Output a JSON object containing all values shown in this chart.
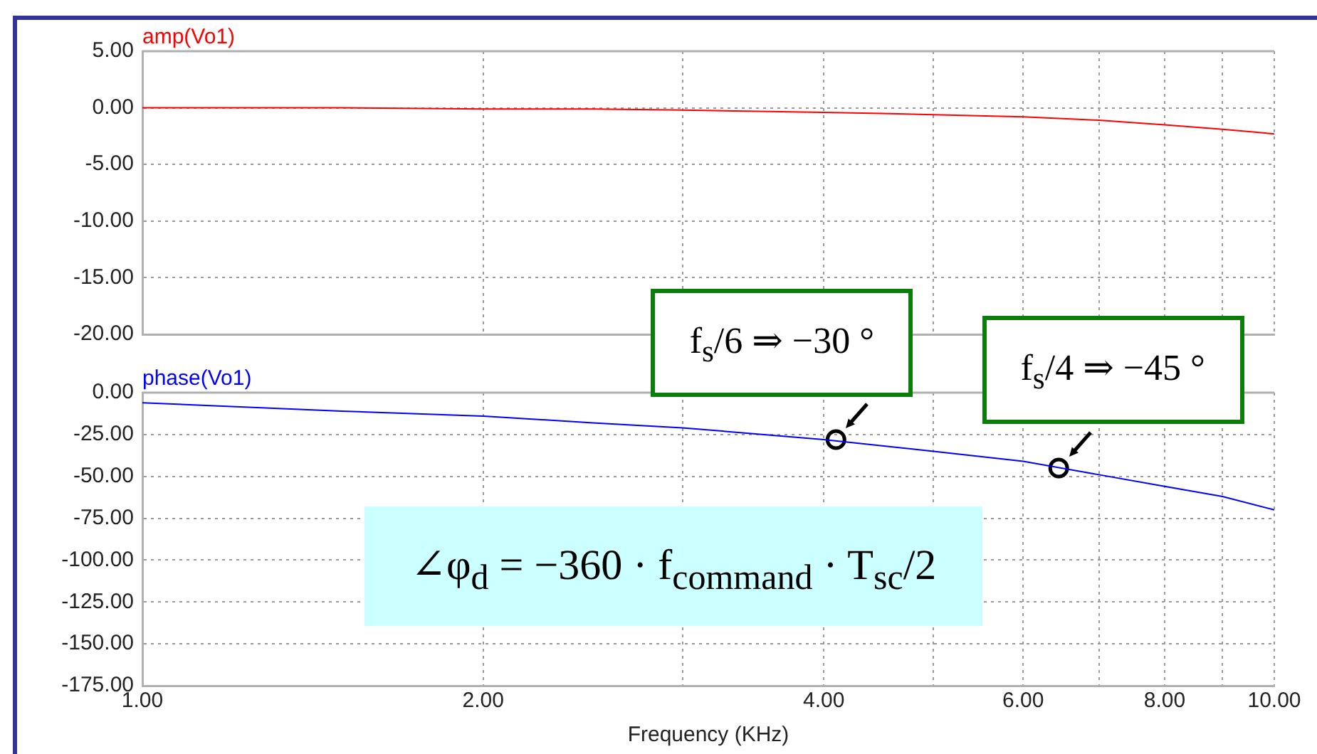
{
  "chart_data": [
    {
      "type": "line",
      "series": [
        {
          "name": "amp(Vo1)",
          "color": "#ff0000",
          "x": [
            1,
            1.5,
            2,
            2.5,
            3,
            3.5,
            4,
            4.5,
            5,
            6,
            7,
            8,
            9,
            10
          ],
          "values": [
            0,
            0,
            -0.1,
            -0.1,
            -0.2,
            -0.3,
            -0.4,
            -0.5,
            -0.6,
            -0.8,
            -1.1,
            -1.5,
            -1.9,
            -2.3
          ]
        }
      ],
      "log": "x",
      "xlim": [
        1,
        10
      ],
      "xticks": [
        1,
        2,
        3,
        4,
        5,
        6,
        7,
        8,
        9,
        10
      ],
      "ylim": [
        -20,
        5
      ],
      "yticks": [
        {
          "value": -20,
          "label": "-20.00"
        },
        {
          "value": -15,
          "label": "-15.00"
        },
        {
          "value": -10,
          "label": "-10.00"
        },
        {
          "value": -5,
          "label": "-5.00"
        },
        {
          "value": 0,
          "label": "0.00"
        },
        {
          "value": 5,
          "label": "5.00"
        }
      ],
      "tick_labels": "y",
      "grid": true
    },
    {
      "type": "line",
      "xlabel": "Frequency (KHz)",
      "series": [
        {
          "name": "phase(Vo1)",
          "color": "#0000ff",
          "x": [
            1,
            1.5,
            2,
            2.5,
            3,
            4,
            5,
            6,
            7,
            8,
            9,
            10
          ],
          "values": [
            -6,
            -11,
            -14,
            -18,
            -21,
            -28,
            -35,
            -41,
            -49,
            -56,
            -62,
            -70
          ]
        },
        {
          "type": "scatter",
          "color": "#000000",
          "marker": "circle",
          "x": [
            4.1,
            6.45
          ],
          "values": [
            -28,
            -45
          ]
        }
      ],
      "log": "x",
      "xlim": [
        1,
        10
      ],
      "xticks": [
        {
          "value": 1,
          "label": "1.00"
        },
        {
          "value": 2,
          "label": "2.00"
        },
        {
          "value": 3,
          "label": null
        },
        {
          "value": 4,
          "label": "4.00"
        },
        {
          "value": 5,
          "label": null
        },
        {
          "value": 6,
          "label": "6.00"
        },
        {
          "value": 7,
          "label": null
        },
        {
          "value": 8,
          "label": "8.00"
        },
        {
          "value": 9,
          "label": null
        },
        {
          "value": 10,
          "label": "10.00"
        }
      ],
      "ylim": [
        -175,
        0
      ],
      "yticks": [
        {
          "value": -175,
          "label": "-175.00"
        },
        {
          "value": -150,
          "label": "-150.00"
        },
        {
          "value": -125,
          "label": "-125.00"
        },
        {
          "value": -100,
          "label": "-100.00"
        },
        {
          "value": -75,
          "label": "-75.00"
        },
        {
          "value": -50,
          "label": "-50.00"
        },
        {
          "value": -25,
          "label": "-25.00"
        },
        {
          "value": 0,
          "label": "0.00"
        }
      ],
      "grid": true,
      "annotations": [
        {
          "text": "f$_{s}$/6 ⇒ −30 °",
          "x": 4.1,
          "y": -28
        },
        {
          "text": "f$_{s}$/4 ⇒ −45 °",
          "x": 6.45,
          "y": -45
        },
        "∠φ$_{d}$ = −360 · f$_{command}$ · T$_{sc}$/2"
      ]
    }
  ]
}
